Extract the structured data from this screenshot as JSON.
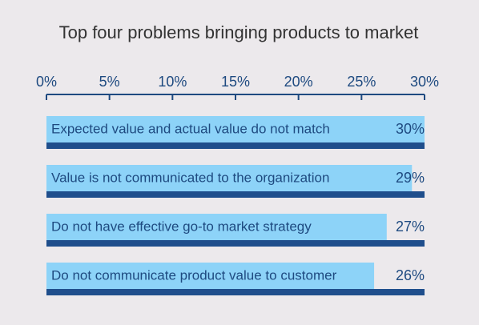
{
  "chart_data": {
    "type": "bar",
    "orientation": "horizontal",
    "title": "Top four problems bringing products to market",
    "categories": [
      "Expected value and actual value do not match",
      "Value is not communicated to the organization",
      "Do not have effective go-to market strategy",
      "Do not communicate product value to customer"
    ],
    "values": [
      30,
      29,
      27,
      26
    ],
    "value_labels": [
      "30%",
      "29%",
      "27%",
      "26%"
    ],
    "color": "#8dd3f8",
    "xlim": [
      0,
      30
    ],
    "xticks": [
      {
        "value": 0,
        "label": "0%"
      },
      {
        "value": 5,
        "label": "5%"
      },
      {
        "value": 10,
        "label": "10%"
      },
      {
        "value": 15,
        "label": "15%"
      },
      {
        "value": 20,
        "label": "20%"
      },
      {
        "value": 25,
        "label": "25%"
      },
      {
        "value": 30,
        "label": "30%"
      }
    ]
  }
}
